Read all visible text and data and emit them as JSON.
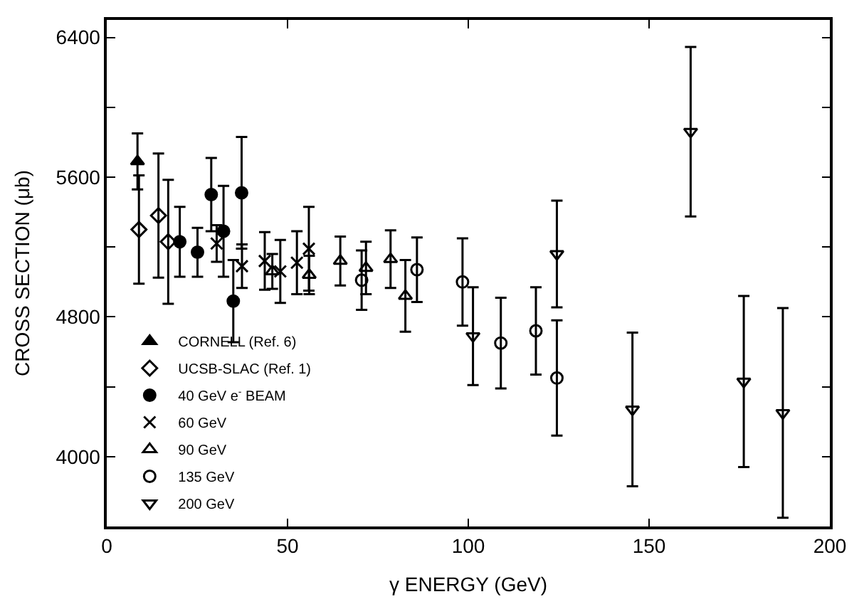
{
  "chart_data": {
    "type": "scatter",
    "xlabel": "γ ENERGY (GeV)",
    "ylabel": "CROSS SECTION (μb)",
    "xlim": [
      0,
      200
    ],
    "xticks": [
      0,
      50,
      100,
      150,
      200
    ],
    "ylim": [
      3600,
      6500
    ],
    "yticks": [
      4000,
      {
        "value": 4400,
        "label": null
      },
      4800,
      {
        "value": 5200,
        "label": null
      },
      5600,
      {
        "value": 6000,
        "label": null
      },
      6400
    ],
    "legend": "bottom left",
    "series": [
      {
        "name": "CORNELL (Ref. 6)",
        "color": "#000000",
        "marker": "triangle",
        "x": [
          8.5
        ],
        "values": [
          5690
        ],
        "errors": [
          160
        ]
      },
      {
        "name": "UCSB-SLAC (Ref. 1)",
        "color": "#000000",
        "marker": "diamond-open",
        "x": [
          8.9,
          14.3,
          17.0
        ],
        "values": [
          5300,
          5380,
          5230
        ],
        "errors": [
          310,
          355,
          355
        ]
      },
      {
        "name": "40 GeV e$^{-}$ BEAM",
        "color": "#000000",
        "marker": "circle",
        "x": [
          20.2,
          25.1,
          28.9,
          32.3,
          35.0,
          37.3
        ],
        "values": [
          5230,
          5170,
          5500,
          5290,
          4890,
          5510
        ],
        "errors": [
          200,
          140,
          210,
          260,
          235,
          320
        ]
      },
      {
        "name": "60 GeV",
        "color": "#000000",
        "marker": "cross",
        "x": [
          30.4,
          37.4,
          43.7,
          48.0,
          52.6,
          55.9
        ],
        "values": [
          5220,
          5090,
          5120,
          5060,
          5110,
          5190
        ],
        "errors": [
          105,
          125,
          165,
          180,
          180,
          240
        ]
      },
      {
        "name": "90 GeV",
        "color": "#000000",
        "marker": "triangle-open",
        "x": [
          45.8,
          56.0,
          64.6,
          71.7,
          78.5,
          82.6
        ],
        "values": [
          5060,
          5040,
          5120,
          5080,
          5130,
          4920
        ],
        "errors": [
          100,
          110,
          140,
          150,
          165,
          205
        ]
      },
      {
        "name": "135 GeV",
        "color": "#000000",
        "marker": "circle-open",
        "x": [
          70.5,
          85.8,
          98.4,
          109.0,
          118.7,
          124.5
        ],
        "values": [
          5010,
          5070,
          5000,
          4650,
          4720,
          4450
        ],
        "errors": [
          170,
          185,
          250,
          260,
          250,
          330
        ]
      },
      {
        "name": "200 GeV",
        "color": "#000000",
        "marker": "triangle-down-open",
        "x": [
          101.3,
          124.5,
          145.4,
          161.5,
          176.2,
          187.0
        ],
        "values": [
          4690,
          5160,
          4270,
          5860,
          4430,
          4250
        ],
        "errors": [
          280,
          305,
          440,
          485,
          490,
          600
        ]
      }
    ]
  }
}
